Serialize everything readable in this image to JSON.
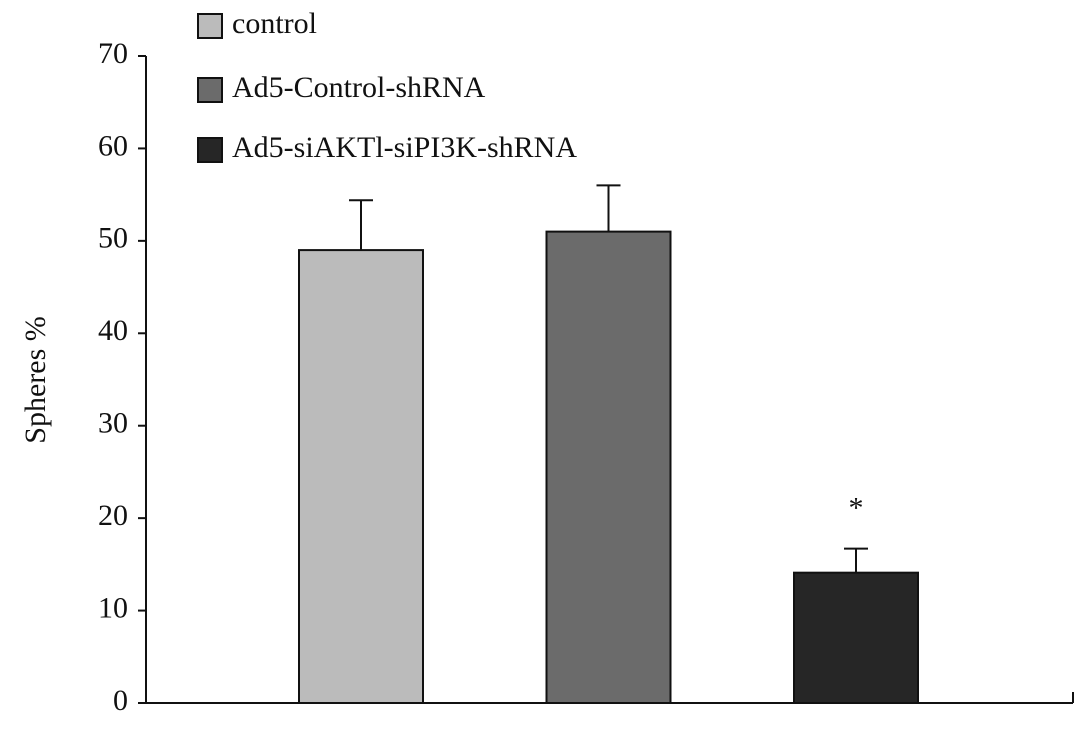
{
  "chart_data": {
    "type": "bar",
    "y_label": "Spheres %",
    "categories": [
      null
    ],
    "series": [
      {
        "name": "control",
        "color": "#bbbbbb",
        "values": [
          49
        ],
        "errors": [
          5.4
        ]
      },
      {
        "name": "Ad5-Control-shRNA",
        "color": "#6b6b6b",
        "values": [
          51
        ],
        "errors": [
          5
        ]
      },
      {
        "name": "Ad5-siAKTl-siPI3K-shRNA",
        "color": "#262626",
        "values": [
          14.1
        ],
        "errors": [
          2.6
        ],
        "annotation": "*"
      }
    ],
    "ylim": [
      0,
      70
    ],
    "yticks": [
      0,
      10,
      20,
      30,
      40,
      50,
      60,
      70
    ],
    "grid": false,
    "legend": "top-left"
  }
}
